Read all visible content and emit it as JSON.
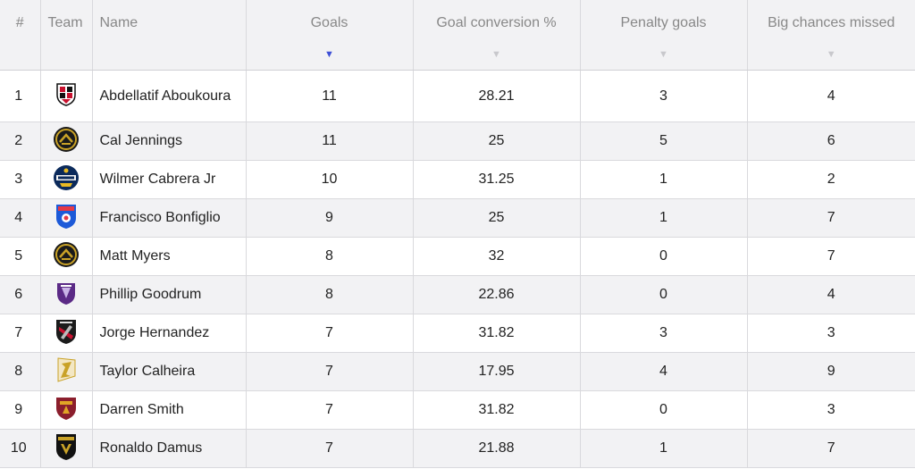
{
  "headers": {
    "rank": "#",
    "team": "Team",
    "name": "Name",
    "goals": "Goals",
    "conversion": "Goal conversion %",
    "penalty": "Penalty goals",
    "big_chances": "Big chances missed"
  },
  "sort": {
    "column": "goals",
    "direction": "desc"
  },
  "rows": [
    {
      "rank": "1",
      "name": "Abdellatif Aboukoura",
      "goals": "11",
      "conversion": "28.21",
      "penalty": "3",
      "big_chances": "4",
      "team_logo": "red-black-shield-crest-icon"
    },
    {
      "rank": "2",
      "name": "Cal Jennings",
      "goals": "11",
      "conversion": "25",
      "penalty": "5",
      "big_chances": "6",
      "team_logo": "black-gold-circle-crest-icon"
    },
    {
      "rank": "3",
      "name": "Wilmer Cabrera Jr",
      "goals": "10",
      "conversion": "31.25",
      "penalty": "1",
      "big_chances": "2",
      "team_logo": "locomotive-badge-icon"
    },
    {
      "rank": "4",
      "name": "Francisco Bonfiglio",
      "goals": "9",
      "conversion": "25",
      "penalty": "1",
      "big_chances": "7",
      "team_logo": "miami-shield-icon"
    },
    {
      "rank": "5",
      "name": "Matt Myers",
      "goals": "8",
      "conversion": "32",
      "penalty": "0",
      "big_chances": "7",
      "team_logo": "black-gold-circle-crest-icon"
    },
    {
      "rank": "6",
      "name": "Phillip Goodrum",
      "goals": "8",
      "conversion": "22.86",
      "penalty": "0",
      "big_chances": "4",
      "team_logo": "purple-shield-crest-icon"
    },
    {
      "rank": "7",
      "name": "Jorge Hernandez",
      "goals": "7",
      "conversion": "31.82",
      "penalty": "3",
      "big_chances": "3",
      "team_logo": "black-red-shield-crest-icon"
    },
    {
      "rank": "8",
      "name": "Taylor Calheira",
      "goals": "7",
      "conversion": "17.95",
      "penalty": "4",
      "big_chances": "9",
      "team_logo": "gold-flag-crest-icon"
    },
    {
      "rank": "9",
      "name": "Darren Smith",
      "goals": "7",
      "conversion": "31.82",
      "penalty": "0",
      "big_chances": "3",
      "team_logo": "maroon-gold-shield-crest-icon"
    },
    {
      "rank": "10",
      "name": "Ronaldo Damus",
      "goals": "7",
      "conversion": "21.88",
      "penalty": "1",
      "big_chances": "7",
      "team_logo": "legion-shield-icon"
    }
  ],
  "colors": {
    "header_bg": "#f2f2f4",
    "stripe_bg": "#f2f2f4",
    "sort_active": "#3d4fd6",
    "sort_inactive": "#c8c8cc",
    "border": "#d9d9dd"
  }
}
